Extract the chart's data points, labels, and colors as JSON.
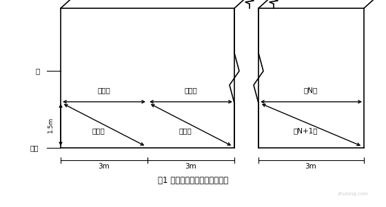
{
  "bg_color": "#ffffff",
  "title": "图1 超长混凝土墙平整度测量图",
  "wall_label": "墙",
  "ground_label": "地面",
  "label1": "第一尺",
  "label2": "第二尺",
  "label3": "第三尺",
  "label4": "第四尺",
  "labelN": "第N尺",
  "labelN1": "第N+1尺",
  "dim_15m": "1.5m",
  "dim_3m1": "3m",
  "dim_3m2": "3m",
  "dim_3m3": "3m",
  "line_color": "#000000",
  "text_color": "#000000",
  "watermark": "zhulong.com",
  "figsize": [
    5.6,
    3.01
  ],
  "dpi": 100
}
